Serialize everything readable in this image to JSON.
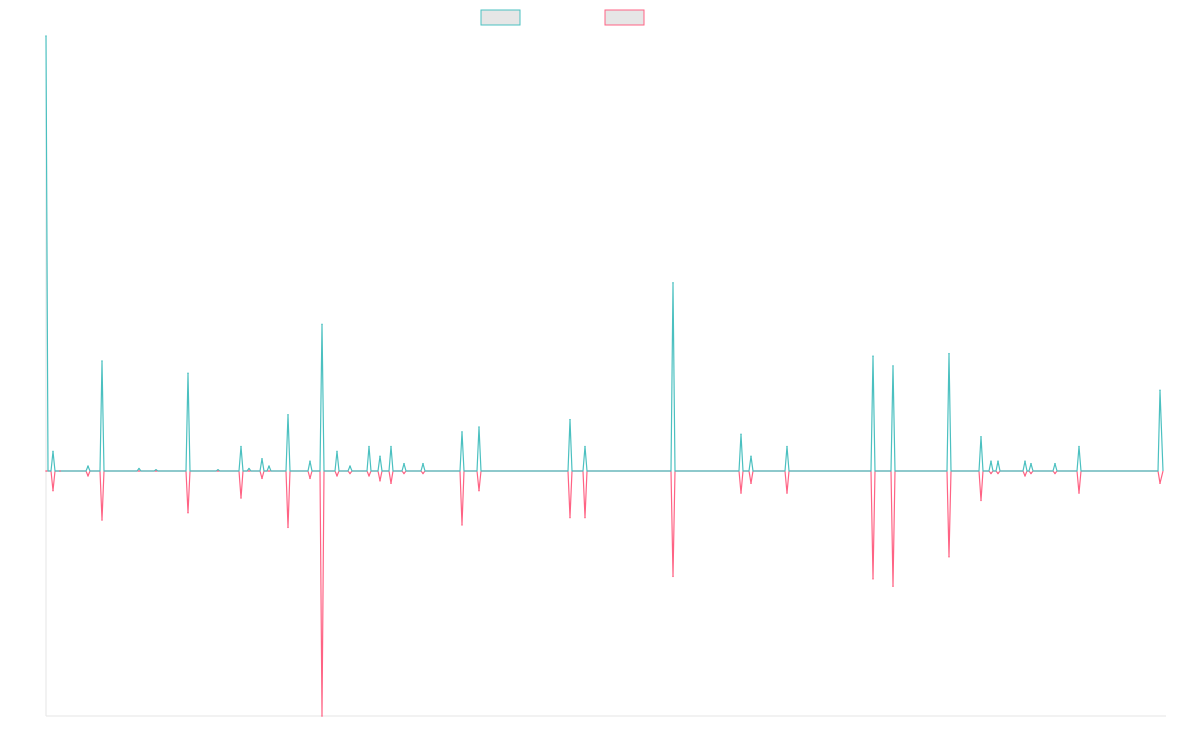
{
  "chart_data": {
    "type": "line",
    "title": "",
    "xlabel": "",
    "ylabel": "",
    "ylim": [
      -100,
      178
    ],
    "grid": false,
    "legend": {
      "placement": "top-center",
      "entries": [
        {
          "label": "",
          "color": "#4bc0c0",
          "fill": "#e6e6e6"
        },
        {
          "label": "",
          "color": "#ff6384",
          "fill": "#e6e6e6"
        }
      ]
    },
    "points": [
      {
        "x": 0,
        "pos": 178,
        "neg": 0
      },
      {
        "x": 1,
        "pos": 8,
        "neg": -8
      },
      {
        "x": 2,
        "pos": 0,
        "neg": 0
      },
      {
        "x": 3,
        "pos": 2,
        "neg": -2
      },
      {
        "x": 4,
        "pos": 45,
        "neg": -20
      },
      {
        "x": 5,
        "pos": 1,
        "neg": 0
      },
      {
        "x": 6,
        "pos": 0.5,
        "neg": 0
      },
      {
        "x": 7,
        "pos": 40,
        "neg": -17
      },
      {
        "x": 8,
        "pos": 0.5,
        "neg": 0
      },
      {
        "x": 9,
        "pos": 10,
        "neg": -11
      },
      {
        "x": 10,
        "pos": 1,
        "neg": 0
      },
      {
        "x": 11,
        "pos": 5,
        "neg": -3
      },
      {
        "x": 12,
        "pos": 2,
        "neg": 0
      },
      {
        "x": 13,
        "pos": 23,
        "neg": -23
      },
      {
        "x": 14,
        "pos": 4,
        "neg": -3
      },
      {
        "x": 15,
        "pos": 60,
        "neg": -100
      },
      {
        "x": 16,
        "pos": 8,
        "neg": -2
      },
      {
        "x": 17,
        "pos": 2,
        "neg": -1
      },
      {
        "x": 18,
        "pos": 10,
        "neg": -2
      },
      {
        "x": 19,
        "pos": 6,
        "neg": -4
      },
      {
        "x": 20,
        "pos": 10,
        "neg": -5
      },
      {
        "x": 21,
        "pos": 3,
        "neg": -1
      },
      {
        "x": 22,
        "pos": 3,
        "neg": -1
      },
      {
        "x": 23,
        "pos": 16,
        "neg": -22
      },
      {
        "x": 24,
        "pos": 18,
        "neg": -8
      },
      {
        "x": 25,
        "pos": 21,
        "neg": -19
      },
      {
        "x": 26,
        "pos": 10,
        "neg": -19
      },
      {
        "x": 27,
        "pos": 77,
        "neg": -43
      },
      {
        "x": 28,
        "pos": 15,
        "neg": -9
      },
      {
        "x": 29,
        "pos": 6,
        "neg": -5
      },
      {
        "x": 30,
        "pos": 10,
        "neg": -9
      },
      {
        "x": 31,
        "pos": 47,
        "neg": -44
      },
      {
        "x": 32,
        "pos": 43,
        "neg": -47
      },
      {
        "x": 33,
        "pos": 48,
        "neg": -35
      },
      {
        "x": 34,
        "pos": 14,
        "neg": -12
      },
      {
        "x": 35,
        "pos": 4,
        "neg": -1
      },
      {
        "x": 36,
        "pos": 4,
        "neg": -1
      },
      {
        "x": 37,
        "pos": 4,
        "neg": -2
      },
      {
        "x": 38,
        "pos": 3,
        "neg": -1
      },
      {
        "x": 39,
        "pos": 3,
        "neg": -1
      },
      {
        "x": 40,
        "pos": 10,
        "neg": -9
      },
      {
        "x": 41,
        "pos": 33,
        "neg": -5
      }
    ]
  }
}
